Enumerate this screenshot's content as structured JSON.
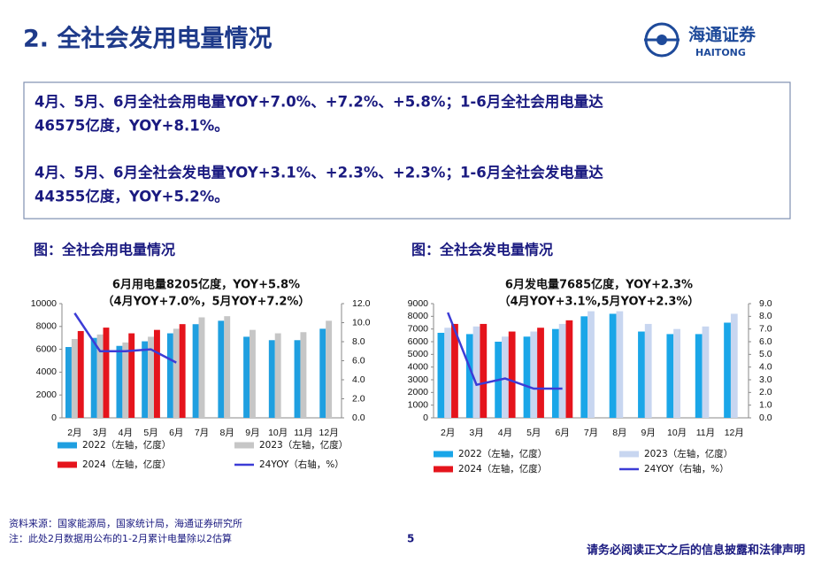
{
  "header": {
    "title": "2. 全社会发用电量情况",
    "logo_cn": "海通证券",
    "logo_en": "HAITONG"
  },
  "summary": [
    [
      "4月、5月、6月全社会用电量YOY+7.0%、+7.2%、+5.8%；1-6月全社会用电量达",
      "46575亿度，YOY+8.1%。"
    ],
    [
      "4月、5月、6月全社会发电量YOY+3.1%、+2.3%、+2.3%；1-6月全社会发电量达",
      "44355亿度，YOY+5.2%。"
    ]
  ],
  "chart_data": [
    {
      "type": "bar",
      "title": "图：全社会用电量情况",
      "annotations": [
        "6月用电量8205亿度，YOY+5.8%",
        "（4月YOY+7.0%，5月YOY+7.2%）"
      ],
      "categories": [
        "2月",
        "3月",
        "4月",
        "5月",
        "6月",
        "7月",
        "8月",
        "9月",
        "10月",
        "11月",
        "12月"
      ],
      "ylim": [
        0,
        10000
      ],
      "yticks": [
        0,
        2000,
        4000,
        6000,
        8000,
        10000
      ],
      "y2lim": [
        0,
        12
      ],
      "y2ticks": [
        {
          "value": 0,
          "label": "0.0"
        },
        {
          "value": 2,
          "label": "2.0"
        },
        {
          "value": 4,
          "label": "4.0"
        },
        {
          "value": 6,
          "label": "6.0"
        },
        {
          "value": 8,
          "label": "8.0"
        },
        {
          "value": 10,
          "label": "10.0"
        },
        {
          "value": 12,
          "label": "12.0"
        }
      ],
      "series": [
        {
          "name": "2022（左轴，亿度）",
          "color": "#1f9fe0",
          "values": [
            6200,
            7000,
            6300,
            6700,
            7400,
            8200,
            8500,
            7100,
            6800,
            6800,
            7800
          ]
        },
        {
          "name": "2023（左轴，亿度）",
          "color": "#c6c6c6",
          "values": [
            6900,
            7300,
            6600,
            7100,
            7800,
            8800,
            8900,
            7700,
            7400,
            7500,
            8500
          ]
        },
        {
          "name": "2024（左轴，亿度）",
          "color": "#e5141c",
          "values": [
            7600,
            7900,
            7400,
            7700,
            8205,
            null,
            null,
            null,
            null,
            null,
            null
          ]
        },
        {
          "name": "24YOY（右轴，%）",
          "color": "#3c3cd6",
          "type": "line",
          "axis": "y2",
          "values": [
            11.0,
            7.0,
            7.0,
            7.2,
            5.8,
            null,
            null,
            null,
            null,
            null,
            null
          ]
        }
      ]
    },
    {
      "type": "bar",
      "title": "图：全社会发电量情况",
      "annotations": [
        "6月发电量7685亿度，YOY+2.3%",
        "（4月YOY+3.1%,5月YOY+2.3%）"
      ],
      "categories": [
        "2月",
        "3月",
        "4月",
        "5月",
        "6月",
        "7月",
        "8月",
        "9月",
        "10月",
        "11月",
        "12月"
      ],
      "ylim": [
        0,
        9000
      ],
      "yticks": [
        0,
        1000,
        2000,
        3000,
        4000,
        5000,
        6000,
        7000,
        8000,
        9000
      ],
      "y2lim": [
        0,
        9
      ],
      "y2ticks": [
        {
          "value": 0,
          "label": "0.0"
        },
        {
          "value": 1,
          "label": "1.0"
        },
        {
          "value": 2,
          "label": "2.0"
        },
        {
          "value": 3,
          "label": "3.0"
        },
        {
          "value": 4,
          "label": "4.0"
        },
        {
          "value": 5,
          "label": "5.0"
        },
        {
          "value": 6,
          "label": "6.0"
        },
        {
          "value": 7,
          "label": "7.0"
        },
        {
          "value": 8,
          "label": "8.0"
        },
        {
          "value": 9,
          "label": "9.0"
        }
      ],
      "series": [
        {
          "name": "2022（左轴，亿度）",
          "color": "#1aa6e8",
          "values": [
            6700,
            6600,
            6000,
            6400,
            7000,
            8000,
            8200,
            6800,
            6600,
            6600,
            7500
          ]
        },
        {
          "name": "2023（左轴，亿度）",
          "color": "#c8d6f0",
          "values": [
            7100,
            7200,
            6400,
            6800,
            7400,
            8400,
            8400,
            7400,
            7000,
            7200,
            8200
          ]
        },
        {
          "name": "2024（左轴，亿度）",
          "color": "#e5141c",
          "values": [
            7400,
            7400,
            6800,
            7100,
            7685,
            null,
            null,
            null,
            null,
            null,
            null
          ]
        },
        {
          "name": "24YOY（右轴，%）",
          "color": "#3c3cd6",
          "type": "line",
          "axis": "y2",
          "values": [
            8.3,
            2.6,
            3.1,
            2.3,
            2.3,
            null,
            null,
            null,
            null,
            null,
            null
          ]
        }
      ]
    }
  ],
  "footer": {
    "source": "资料来源：国家能源局，国家统计局，海通证券研究所",
    "note": "注：此处2月数据用公布的1-2月累计电量除以2估算",
    "page": "5",
    "disclaimer": "请务必阅读正文之后的信息披露和法律声明"
  }
}
